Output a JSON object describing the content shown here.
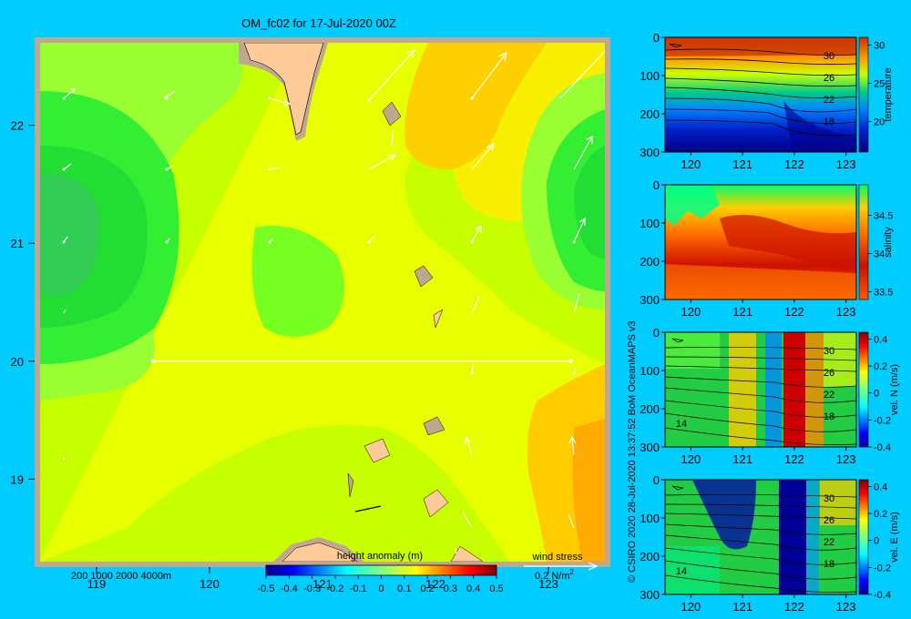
{
  "chart_data": [
    {
      "type": "heatmap",
      "title": "OM_fc02 for 17-Jul-2020 00Z",
      "xlabel": "",
      "ylabel": "",
      "xlim": [
        118.5,
        123.5
      ],
      "ylim": [
        18.3,
        22.7
      ],
      "xticks": [
        "119",
        "120",
        "121",
        "122",
        "123"
      ],
      "yticks": [
        "19",
        "20",
        "21",
        "22"
      ],
      "colorbar": {
        "label": "height anomaly (m)",
        "range": [
          -0.5,
          0.5
        ],
        "ticks": [
          "-0.5",
          "-0.4",
          "-0.3",
          "-0.2",
          "-0.1",
          "0",
          "0.1",
          "0.2",
          "0.3",
          "0.4",
          "0.5"
        ]
      },
      "section_line": {
        "lat": 20.0,
        "lon": [
          119.5,
          123.2
        ]
      },
      "depth_contours_label": "200  1000  2000  4000m",
      "wind_stress_legend": {
        "label": "wind stress",
        "scale": "0.2 N/m",
        "exponent": "2"
      }
    },
    {
      "type": "heatmap",
      "title": "",
      "variable": "temperature",
      "xticks": [
        "120",
        "121",
        "122",
        "123"
      ],
      "yticks": [
        "0",
        "100",
        "200",
        "300"
      ],
      "xlim": [
        119.5,
        123.2
      ],
      "ylim": [
        300,
        0
      ],
      "colorbar": {
        "label": "temperature",
        "range": [
          16,
          31
        ],
        "ticks": [
          "30",
          "25",
          "20"
        ]
      },
      "contour_labels": [
        "30",
        "26",
        "22",
        "18"
      ]
    },
    {
      "type": "heatmap",
      "title": "",
      "variable": "salinity",
      "xticks": [
        "120",
        "121",
        "122",
        "123"
      ],
      "yticks": [
        "0",
        "100",
        "200",
        "300"
      ],
      "xlim": [
        119.5,
        123.2
      ],
      "ylim": [
        300,
        0
      ],
      "colorbar": {
        "label": "salinity",
        "range": [
          33.4,
          34.9
        ],
        "ticks": [
          "34.5",
          "34",
          "33.5"
        ]
      }
    },
    {
      "type": "heatmap",
      "title": "",
      "variable": "vel. N (m/s)",
      "xticks": [
        "120",
        "121",
        "122",
        "123"
      ],
      "yticks": [
        "0",
        "100",
        "200",
        "300"
      ],
      "xlim": [
        119.5,
        123.2
      ],
      "ylim": [
        300,
        0
      ],
      "colorbar": {
        "label": "vel. N (m/s)",
        "range": [
          -0.4,
          0.45
        ],
        "ticks": [
          "0.4",
          "0.2",
          "0",
          "-0.2",
          "-0.4"
        ]
      },
      "contour_labels": [
        "30",
        "26",
        "22",
        "18",
        "14"
      ]
    },
    {
      "type": "heatmap",
      "title": "",
      "variable": "vel. E (m/s)",
      "xticks": [
        "120",
        "121",
        "122",
        "123"
      ],
      "yticks": [
        "0",
        "100",
        "200",
        "300"
      ],
      "xlim": [
        119.5,
        123.2
      ],
      "ylim": [
        300,
        0
      ],
      "colorbar": {
        "label": "vel. E (m/s)",
        "range": [
          -0.4,
          0.45
        ],
        "ticks": [
          "0.4",
          "0.2",
          "0",
          "-0.2",
          "-0.4"
        ]
      },
      "contour_labels": [
        "30",
        "26",
        "22",
        "18",
        "14"
      ]
    }
  ],
  "credit": "© CSIRO 2020   28-Jul-2020 13:37:52 BoM OceanMAPS v3",
  "colors": {
    "background": "#00ccff",
    "land": "#ffcc99",
    "shelf": "#c0a890"
  }
}
